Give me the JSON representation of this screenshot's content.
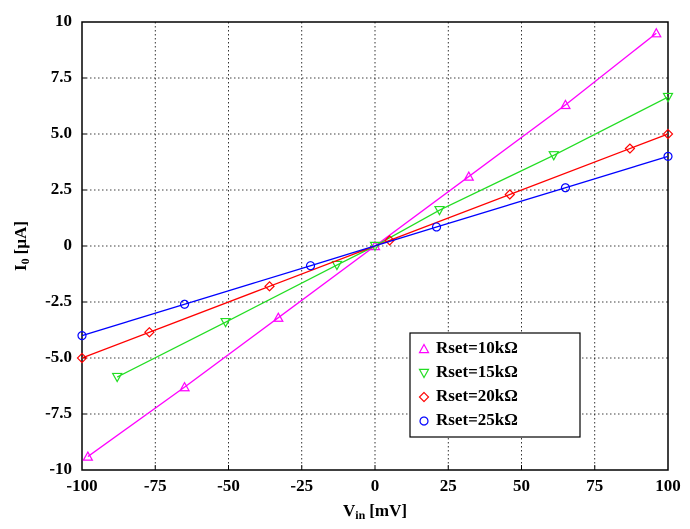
{
  "chart_data": {
    "type": "line",
    "x_label": {
      "main": "V",
      "sub": "in",
      "unit": "[mV]"
    },
    "y_label": {
      "main": "I",
      "sub": "0",
      "unit": "[µA]"
    },
    "xlim": [
      -100,
      100
    ],
    "ylim": [
      -10,
      10
    ],
    "xticks": [
      -100,
      -75,
      -50,
      -25,
      0,
      25,
      50,
      75,
      100
    ],
    "yticks": [
      -10,
      -7.5,
      {
        "value": -5,
        "label": "-5.0"
      },
      -2.5,
      0,
      2.5,
      {
        "value": 5,
        "label": "5.0"
      },
      7.5,
      10
    ],
    "grid": true,
    "legend": "lower right",
    "series": [
      {
        "name": "Rset=10kΩ",
        "color": "#ff00ff",
        "marker": "triangle-up",
        "x": [
          -98,
          -65,
          -33,
          0,
          32,
          65,
          96
        ],
        "values": [
          -9.4,
          -6.3,
          -3.2,
          0,
          3.1,
          6.3,
          9.5
        ]
      },
      {
        "name": "Rset=15kΩ",
        "color": "#22dd22",
        "marker": "triangle-down",
        "x": [
          -88,
          -51,
          -13,
          0,
          22,
          61,
          100
        ],
        "values": [
          -5.85,
          -3.4,
          -0.85,
          0,
          1.6,
          4.05,
          6.65
        ]
      },
      {
        "name": "Rset=20kΩ",
        "color": "#ff0000",
        "marker": "diamond",
        "x": [
          -100,
          -77,
          -36,
          5,
          46,
          87,
          100
        ],
        "values": [
          -5,
          -3.85,
          -1.8,
          0.25,
          2.3,
          4.35,
          5
        ]
      },
      {
        "name": "Rset=25kΩ",
        "color": "#0000ff",
        "marker": "circle",
        "x": [
          -100,
          -65,
          -22,
          21,
          65,
          100
        ],
        "values": [
          -4,
          -2.6,
          -0.88,
          0.85,
          2.6,
          4
        ]
      }
    ]
  }
}
